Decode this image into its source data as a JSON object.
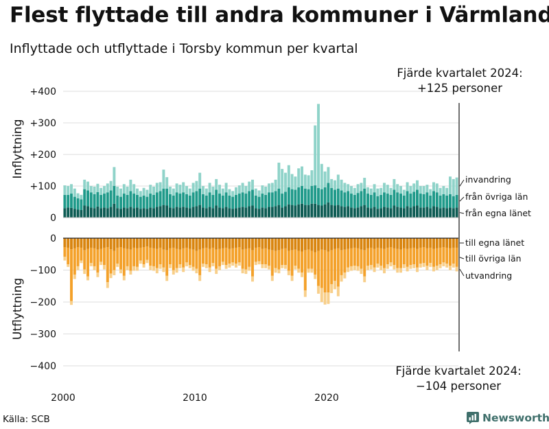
{
  "title": "Flest flyttade till andra kommuner i Värmland",
  "subtitle": "Inflyttade och utflyttade i Torsby kommun per kvartal",
  "annotation_top": {
    "line1": "Fjärde kvartalet 2024:",
    "line2": "+125 personer"
  },
  "annotation_bottom": {
    "line1": "Fjärde kvartalet 2024:",
    "line2": "−104 personer"
  },
  "source": "Källa: SCB",
  "brand": "Newsworthy",
  "colors": {
    "in_own_county": "#0e5c54",
    "in_other_counties": "#1f9a8a",
    "in_immigration": "#8fd3c9",
    "out_own_county": "#d9850f",
    "out_other_counties": "#f4a12a",
    "out_emigration": "#f8cf8a",
    "grid": "#dddddd",
    "axis": "#222222"
  },
  "chart_data": {
    "type": "bar",
    "stacked": true,
    "x_start": 2000,
    "x_step_quarters": 1,
    "x_ticks": [
      {
        "value": 2000,
        "label": "2000"
      },
      {
        "value": 2010,
        "label": "2010"
      },
      {
        "value": 2020,
        "label": "2020"
      }
    ],
    "panels": [
      {
        "ylabel": "Inflyttning",
        "ylim": [
          0,
          420
        ],
        "y_ticks": [
          {
            "value": 0,
            "label": "0"
          },
          {
            "value": 100,
            "label": "+100"
          },
          {
            "value": 200,
            "label": "+200"
          },
          {
            "value": 300,
            "label": "+300"
          },
          {
            "value": 400,
            "label": "+400"
          }
        ],
        "series": [
          {
            "name": "från egna länet",
            "values": [
              30,
              32,
              31,
              28,
              25,
              24,
              38,
              36,
              32,
              30,
              35,
              30,
              32,
              30,
              34,
              44,
              30,
              28,
              32,
              30,
              34,
              30,
              32,
              28,
              30,
              28,
              32,
              30,
              34,
              36,
              40,
              38,
              32,
              30,
              34,
              32,
              34,
              32,
              30,
              34,
              36,
              40,
              32,
              30,
              34,
              30,
              38,
              32,
              30,
              34,
              30,
              28,
              30,
              32,
              34,
              32,
              36,
              38,
              30,
              28,
              32,
              30,
              34,
              34,
              36,
              40,
              32,
              36,
              42,
              40,
              38,
              42,
              44,
              40,
              40,
              44,
              44,
              40,
              38,
              42,
              48,
              40,
              38,
              40,
              36,
              34,
              36,
              32,
              30,
              32,
              36,
              40,
              32,
              30,
              34,
              28,
              30,
              34,
              32,
              30,
              38,
              34,
              32,
              30,
              36,
              32,
              36,
              38,
              32,
              32,
              34,
              30,
              36,
              34,
              30,
              32,
              30,
              32,
              30,
              32
            ]
          },
          {
            "name": "från övriga län",
            "values": [
              42,
              40,
              45,
              38,
              36,
              34,
              52,
              50,
              48,
              44,
              46,
              42,
              44,
              50,
              52,
              56,
              40,
              38,
              44,
              42,
              50,
              46,
              40,
              38,
              40,
              38,
              44,
              42,
              46,
              48,
              52,
              54,
              42,
              40,
              46,
              44,
              46,
              42,
              40,
              46,
              48,
              52,
              42,
              40,
              46,
              42,
              50,
              44,
              40,
              46,
              40,
              38,
              42,
              44,
              46,
              44,
              48,
              50,
              40,
              38,
              44,
              42,
              46,
              46,
              48,
              52,
              44,
              46,
              54,
              50,
              50,
              54,
              56,
              52,
              50,
              56,
              58,
              54,
              52,
              54,
              62,
              54,
              50,
              52,
              50,
              46,
              48,
              44,
              42,
              46,
              48,
              52,
              44,
              42,
              46,
              40,
              42,
              46,
              44,
              42,
              50,
              46,
              44,
              40,
              48,
              44,
              46,
              50,
              44,
              42,
              46,
              40,
              48,
              46,
              40,
              42,
              40,
              42,
              38,
              40
            ]
          },
          {
            "name": "invandring",
            "values": [
              30,
              28,
              30,
              26,
              16,
              14,
              30,
              28,
              20,
              24,
              26,
              22,
              24,
              28,
              30,
              60,
              28,
              26,
              30,
              26,
              36,
              30,
              20,
              18,
              24,
              22,
              28,
              26,
              30,
              28,
              60,
              36,
              24,
              22,
              28,
              28,
              32,
              26,
              22,
              30,
              32,
              50,
              26,
              22,
              30,
              26,
              34,
              28,
              22,
              30,
              20,
              18,
              24,
              26,
              30,
              24,
              30,
              32,
              22,
              20,
              26,
              26,
              28,
              30,
              36,
              82,
              78,
              60,
              70,
              48,
              42,
              60,
              62,
              44,
              44,
              50,
              190,
              266,
              80,
              50,
              50,
              28,
              30,
              44,
              34,
              30,
              22,
              24,
              22,
              28,
              26,
              34,
              20,
              20,
              26,
              24,
              22,
              30,
              28,
              22,
              34,
              26,
              24,
              18,
              28,
              24,
              26,
              30,
              24,
              26,
              24,
              20,
              28,
              28,
              24,
              26,
              24,
              56,
              54,
              55
            ]
          }
        ]
      },
      {
        "ylabel": "Utflyttning",
        "ylim": [
          -420,
          0
        ],
        "y_ticks": [
          {
            "value": 0,
            "label": "0"
          },
          {
            "value": -100,
            "label": "−100"
          },
          {
            "value": -200,
            "label": "−200"
          },
          {
            "value": -300,
            "label": "−300"
          },
          {
            "value": -400,
            "label": "−400"
          }
        ],
        "series": [
          {
            "name": "till egna länet",
            "values": [
              -28,
              -30,
              -35,
              -32,
              -28,
              -30,
              -38,
              -34,
              -30,
              -32,
              -36,
              -34,
              -30,
              -28,
              -35,
              -40,
              -30,
              -28,
              -32,
              -34,
              -36,
              -30,
              -32,
              -30,
              -28,
              -26,
              -30,
              -32,
              -34,
              -30,
              -36,
              -38,
              -32,
              -30,
              -34,
              -36,
              -32,
              -30,
              -34,
              -36,
              -40,
              -36,
              -32,
              -30,
              -34,
              -30,
              -36,
              -34,
              -32,
              -30,
              -34,
              -32,
              -30,
              -28,
              -36,
              -34,
              -32,
              -38,
              -30,
              -28,
              -34,
              -32,
              -36,
              -38,
              -40,
              -38,
              -34,
              -32,
              -40,
              -38,
              -36,
              -40,
              -42,
              -38,
              -36,
              -40,
              -44,
              -40,
              -36,
              -38,
              -42,
              -38,
              -34,
              -32,
              -38,
              -36,
              -34,
              -32,
              -30,
              -32,
              -36,
              -38,
              -32,
              -30,
              -34,
              -30,
              -32,
              -34,
              -30,
              -28,
              -32,
              -34,
              -36,
              -32,
              -34,
              -32,
              -30,
              -34,
              -30,
              -28,
              -32,
              -30,
              -34,
              -32,
              -30,
              -28,
              -30,
              -32,
              -30,
              -30
            ]
          },
          {
            "name": "till övriga län",
            "values": [
              -30,
              -52,
              -162,
              -82,
              -60,
              -40,
              -60,
              -86,
              -48,
              -56,
              -72,
              -40,
              -54,
              -110,
              -76,
              -60,
              -50,
              -70,
              -86,
              -54,
              -66,
              -58,
              -58,
              -40,
              -54,
              -42,
              -56,
              -56,
              -60,
              -52,
              -56,
              -80,
              -50,
              -70,
              -60,
              -46,
              -60,
              -46,
              -50,
              -54,
              -56,
              -80,
              -48,
              -52,
              -58,
              -48,
              -60,
              -54,
              -42,
              -54,
              -46,
              -44,
              -50,
              -48,
              -60,
              -64,
              -58,
              -82,
              -44,
              -44,
              -48,
              -50,
              -50,
              -80,
              -54,
              -60,
              -50,
              -52,
              -62,
              -80,
              -50,
              -56,
              -66,
              -126,
              -60,
              -56,
              -70,
              -110,
              -120,
              -132,
              -128,
              -106,
              -100,
              -120,
              -78,
              -72,
              -58,
              -56,
              -56,
              -56,
              -60,
              -82,
              -54,
              -54,
              -58,
              -50,
              -54,
              -60,
              -52,
              -48,
              -52,
              -60,
              -58,
              -50,
              -56,
              -52,
              -52,
              -58,
              -50,
              -50,
              -54,
              -48,
              -56,
              -54,
              -52,
              -48,
              -50,
              -54,
              -50,
              -60
            ]
          },
          {
            "name": "utvandring",
            "values": [
              -12,
              -8,
              -12,
              -14,
              -12,
              -8,
              -14,
              -12,
              -10,
              -12,
              -14,
              -10,
              -14,
              -18,
              -14,
              -16,
              -10,
              -12,
              -14,
              -12,
              -12,
              -14,
              -12,
              -10,
              -10,
              -10,
              -14,
              -14,
              -16,
              -14,
              -14,
              -16,
              -12,
              -14,
              -14,
              -12,
              -14,
              -12,
              -10,
              -12,
              -14,
              -18,
              -10,
              -12,
              -14,
              -10,
              -16,
              -12,
              -10,
              -12,
              -12,
              -10,
              -12,
              -10,
              -14,
              -14,
              -12,
              -16,
              -10,
              -10,
              -12,
              -12,
              -12,
              -16,
              -14,
              -12,
              -10,
              -12,
              -14,
              -16,
              -12,
              -12,
              -14,
              -20,
              -12,
              -12,
              -14,
              -24,
              -44,
              -38,
              -36,
              -28,
              -26,
              -30,
              -20,
              -18,
              -14,
              -14,
              -14,
              -14,
              -16,
              -18,
              -14,
              -14,
              -14,
              -12,
              -14,
              -16,
              -14,
              -12,
              -14,
              -14,
              -14,
              -12,
              -14,
              -12,
              -12,
              -14,
              -12,
              -12,
              -14,
              -12,
              -14,
              -14,
              -12,
              -12,
              -12,
              -14,
              -12,
              -14
            ]
          }
        ]
      }
    ],
    "series_labels_top": [
      "invandring",
      "från övriga län",
      "från egna länet"
    ],
    "series_labels_bottom": [
      "till egna länet",
      "till övriga län",
      "utvandring"
    ]
  }
}
